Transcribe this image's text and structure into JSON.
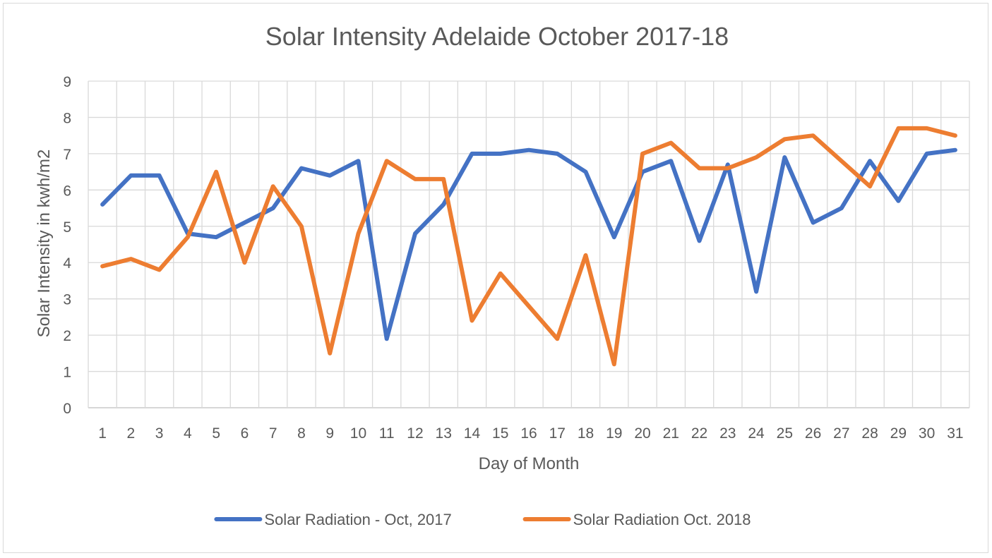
{
  "chart_data": {
    "type": "line",
    "title": "Solar Intensity Adelaide October 2017-18",
    "xlabel": "Day of Month",
    "ylabel": "Solar Intensity in kwh/m2",
    "ylim": [
      0,
      9
    ],
    "yticks": [
      "0",
      "1",
      "2",
      "3",
      "4",
      "5",
      "6",
      "7",
      "8",
      "9"
    ],
    "categories": [
      "1",
      "2",
      "3",
      "4",
      "5",
      "6",
      "7",
      "8",
      "9",
      "10",
      "11",
      "12",
      "13",
      "14",
      "15",
      "16",
      "17",
      "18",
      "19",
      "20",
      "21",
      "22",
      "23",
      "24",
      "25",
      "26",
      "27",
      "28",
      "29",
      "30",
      "31"
    ],
    "grid": true,
    "legend_position": "bottom",
    "series": [
      {
        "name": "Solar Radiation - Oct, 2017",
        "color": "#4472C4",
        "values": [
          5.6,
          6.4,
          6.4,
          4.8,
          4.7,
          5.1,
          5.5,
          6.6,
          6.4,
          6.8,
          1.9,
          4.8,
          5.6,
          7.0,
          7.0,
          7.1,
          7.0,
          6.5,
          4.7,
          6.5,
          6.8,
          4.6,
          6.7,
          3.2,
          6.9,
          5.1,
          5.5,
          6.8,
          5.7,
          7.0,
          7.1
        ]
      },
      {
        "name": "Solar Radiation Oct. 2018",
        "color": "#ED7D31",
        "values": [
          3.9,
          4.1,
          3.8,
          4.7,
          6.5,
          4.0,
          6.1,
          5.0,
          1.5,
          4.8,
          6.8,
          6.3,
          6.3,
          2.4,
          3.7,
          2.8,
          1.9,
          4.2,
          1.2,
          7.0,
          7.3,
          6.6,
          6.6,
          6.9,
          7.4,
          7.5,
          6.8,
          6.1,
          7.7,
          7.7,
          7.5
        ]
      }
    ]
  }
}
